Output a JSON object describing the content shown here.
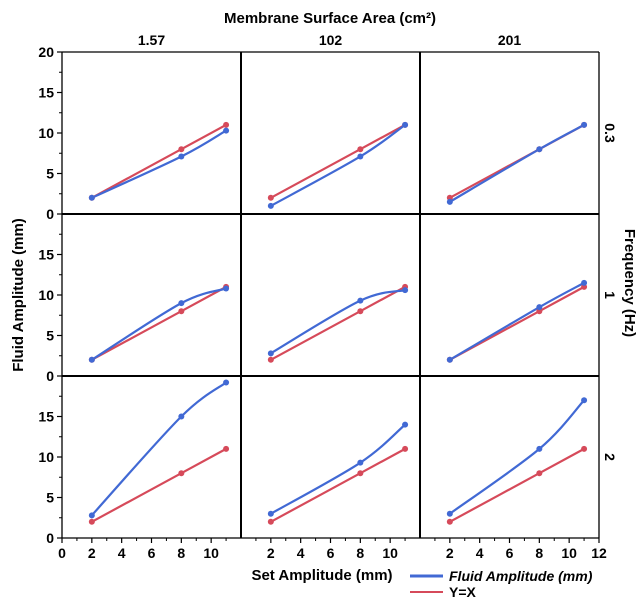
{
  "chart_data": {
    "type": "line",
    "title": "Membrane Surface Area (cm²)",
    "xlabel": "Set Amplitude (mm)",
    "ylabel": "Fluid Amplitude (mm)",
    "right_label": "Frequency (Hz)",
    "columns": [
      "1.57",
      "102",
      "201"
    ],
    "rows": [
      "0.3",
      "1",
      "2"
    ],
    "xlim": [
      0,
      12
    ],
    "ylim": [
      0,
      20
    ],
    "x_ticks_first": [
      0,
      2,
      4,
      6,
      8,
      10
    ],
    "x_ticks_other": [
      2,
      4,
      6,
      8,
      10
    ],
    "x_ticks_last": [
      2,
      4,
      6,
      8,
      10,
      12
    ],
    "y_ticks_top": [
      0,
      5,
      10,
      15,
      20
    ],
    "y_ticks_other": [
      0,
      5,
      10,
      15
    ],
    "grid": false,
    "legend": {
      "position": "bottom-right",
      "entries": [
        {
          "name": "Fluid Amplitude (mm)",
          "color": "#4169d4",
          "italic": true
        },
        {
          "name": "Y=X",
          "color": "#d64a5a",
          "italic": false
        }
      ]
    },
    "x": [
      2,
      8,
      11
    ],
    "panels": [
      {
        "row": "0.3",
        "col": "1.57",
        "fluid": [
          2.0,
          7.1,
          10.3
        ],
        "yx": [
          2,
          8,
          11
        ]
      },
      {
        "row": "0.3",
        "col": "102",
        "fluid": [
          1.0,
          7.1,
          11.0
        ],
        "yx": [
          2,
          8,
          11
        ]
      },
      {
        "row": "0.3",
        "col": "201",
        "fluid": [
          1.5,
          8.0,
          11.0
        ],
        "yx": [
          2,
          8,
          11
        ]
      },
      {
        "row": "1",
        "col": "1.57",
        "fluid": [
          2.0,
          9.0,
          10.8
        ],
        "yx": [
          2,
          8,
          11
        ]
      },
      {
        "row": "1",
        "col": "102",
        "fluid": [
          2.8,
          9.3,
          10.6
        ],
        "yx": [
          2,
          8,
          11
        ]
      },
      {
        "row": "1",
        "col": "201",
        "fluid": [
          2.0,
          8.5,
          11.5
        ],
        "yx": [
          2,
          8,
          11
        ]
      },
      {
        "row": "2",
        "col": "1.57",
        "fluid": [
          2.8,
          15.0,
          19.2
        ],
        "yx": [
          2,
          8,
          11
        ]
      },
      {
        "row": "2",
        "col": "102",
        "fluid": [
          3.0,
          9.3,
          14.0
        ],
        "yx": [
          2,
          8,
          11
        ]
      },
      {
        "row": "2",
        "col": "201",
        "fluid": [
          3.0,
          11.0,
          17.0
        ],
        "yx": [
          2,
          8,
          11
        ]
      }
    ]
  }
}
